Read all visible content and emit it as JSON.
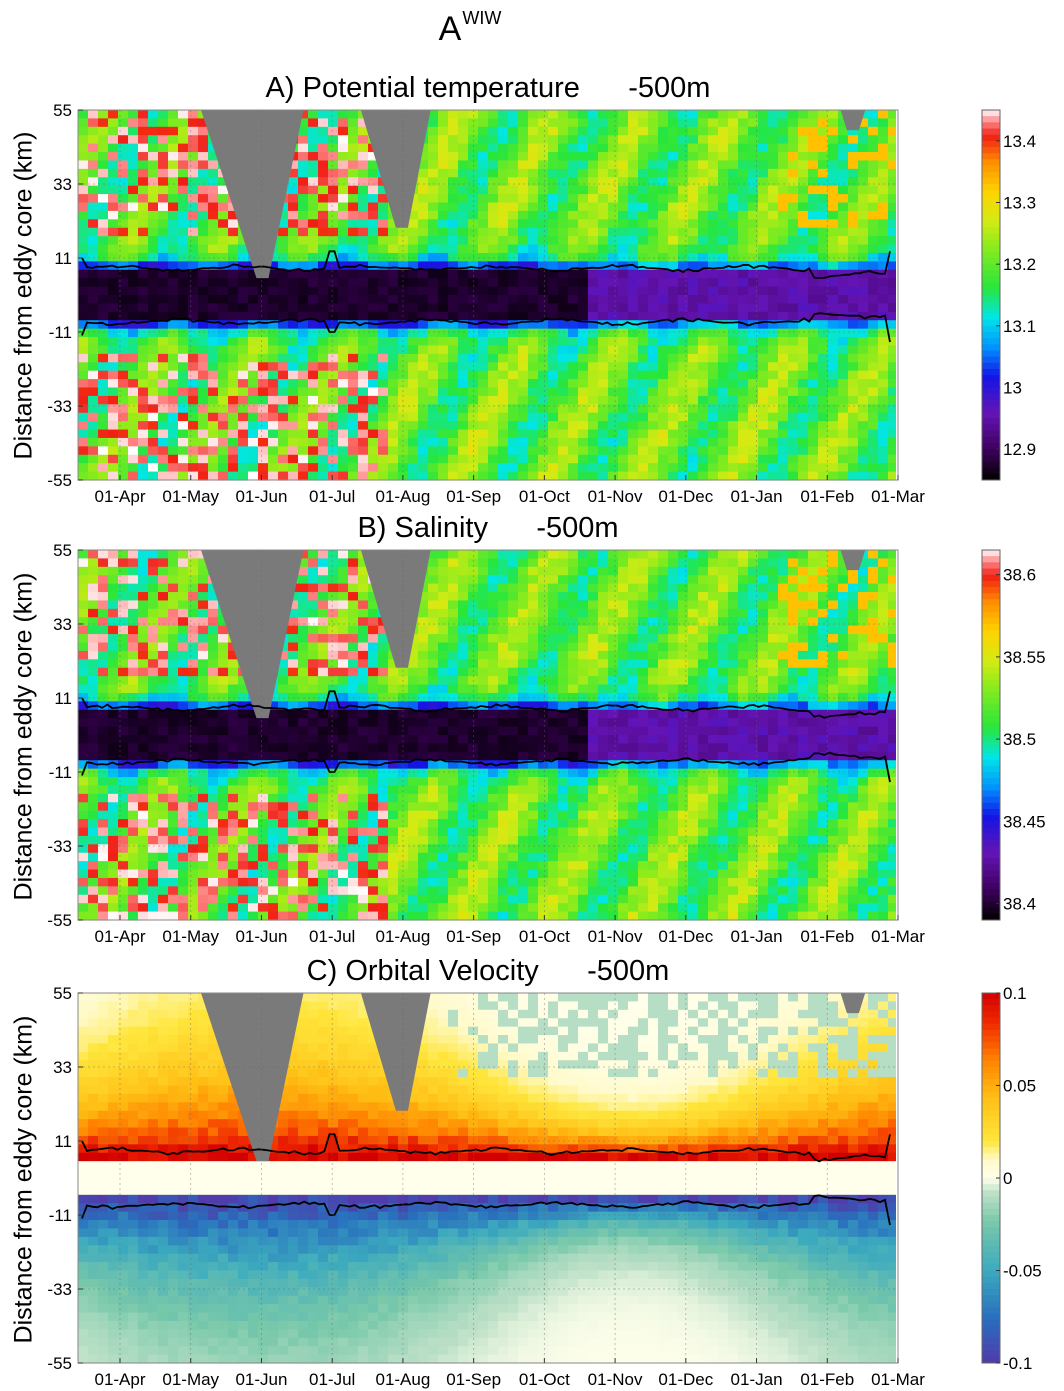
{
  "figure": {
    "title_main": "A",
    "title_sup": "WIW"
  },
  "chart_data": [
    {
      "type": "heatmap",
      "panel_letter": "A)",
      "title": "Potential temperature",
      "depth": "-500m",
      "ylabel": "Distance from eddy core (km)",
      "y_ticks": [
        "55",
        "33",
        "11",
        "-11",
        "-33",
        "-55"
      ],
      "y_tick_values": [
        55,
        33,
        11,
        -11,
        -33,
        -55
      ],
      "ylim": [
        -55,
        55
      ],
      "x_ticks": [
        "01-Apr",
        "01-May",
        "01-Jun",
        "01-Jul",
        "01-Aug",
        "01-Sep",
        "01-Oct",
        "01-Nov",
        "01-Dec",
        "01-Jan",
        "01-Feb",
        "01-Mar"
      ],
      "colorbar_ticks": [
        "13.4",
        "13.3",
        "13.2",
        "13.1",
        "13",
        "12.9"
      ],
      "colorbar_tick_values": [
        13.4,
        13.3,
        13.2,
        13.1,
        13.0,
        12.9
      ],
      "colorbar_range": [
        12.85,
        13.45
      ],
      "colormap": "jet-like",
      "core_value_range": [
        12.86,
        12.98
      ],
      "background_value": 13.2,
      "contour_color": "#000000",
      "mask_color": "#7a7a7a",
      "grid": true
    },
    {
      "type": "heatmap",
      "panel_letter": "B)",
      "title": "Salinity",
      "depth": "-500m",
      "ylabel": "Distance from eddy core (km)",
      "y_ticks": [
        "55",
        "33",
        "11",
        "-11",
        "-33",
        "-55"
      ],
      "y_tick_values": [
        55,
        33,
        11,
        -11,
        -33,
        -55
      ],
      "ylim": [
        -55,
        55
      ],
      "x_ticks": [
        "01-Apr",
        "01-May",
        "01-Jun",
        "01-Jul",
        "01-Aug",
        "01-Sep",
        "01-Oct",
        "01-Nov",
        "01-Dec",
        "01-Jan",
        "01-Feb",
        "01-Mar"
      ],
      "colorbar_ticks": [
        "38.6",
        "38.55",
        "38.5",
        "38.45",
        "38.4"
      ],
      "colorbar_tick_values": [
        38.6,
        38.55,
        38.5,
        38.45,
        38.4
      ],
      "colorbar_range": [
        38.39,
        38.615
      ],
      "colormap": "jet-like",
      "core_value_range": [
        38.39,
        38.44
      ],
      "background_value": 38.52,
      "contour_color": "#000000",
      "mask_color": "#7a7a7a",
      "grid": true
    },
    {
      "type": "heatmap",
      "panel_letter": "C)",
      "title": "Orbital Velocity",
      "depth": "-500m",
      "ylabel": "Distance from eddy core (km)",
      "y_ticks": [
        "55",
        "33",
        "11",
        "-11",
        "-33",
        "-55"
      ],
      "y_tick_values": [
        55,
        33,
        11,
        -11,
        -33,
        -55
      ],
      "ylim": [
        -55,
        55
      ],
      "x_ticks": [
        "01-Apr",
        "01-May",
        "01-Jun",
        "01-Jul",
        "01-Aug",
        "01-Sep",
        "01-Oct",
        "01-Nov",
        "01-Dec",
        "01-Jan",
        "01-Feb",
        "01-Mar"
      ],
      "colorbar_ticks": [
        "0.1",
        "0.05",
        "0",
        "-0.05",
        "-0.1"
      ],
      "colorbar_tick_values": [
        0.1,
        0.05,
        0,
        -0.05,
        -0.1
      ],
      "colorbar_range": [
        -0.1,
        0.1
      ],
      "colormap": "diverging (blue-teal-cream-yellow-red)",
      "upper_side_max": 0.1,
      "lower_side_min": -0.1,
      "contour_color": "#000000",
      "mask_color": "#7a7a7a",
      "grid": true
    }
  ]
}
